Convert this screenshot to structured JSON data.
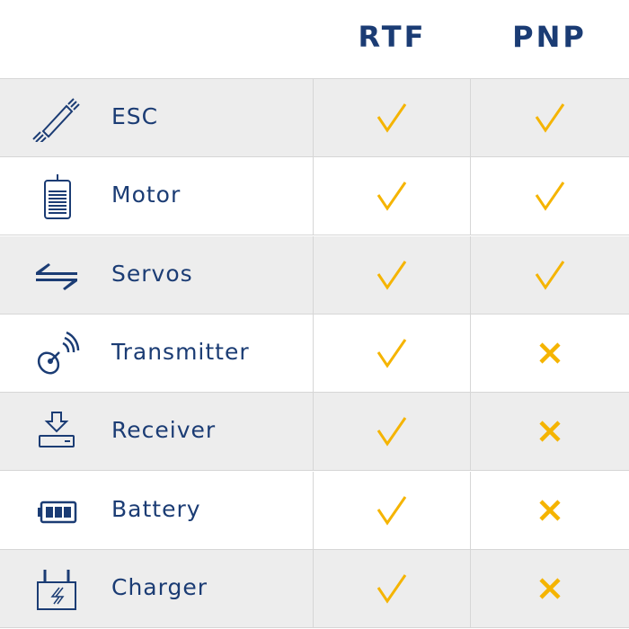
{
  "columns": [
    "RTF",
    "PNP"
  ],
  "colors": {
    "text": "#1b3c74",
    "mark": "#f5b400",
    "alt_row": "#ededed"
  },
  "rows": [
    {
      "label": "ESC",
      "icon": "esc-icon",
      "rtf": "check",
      "pnp": "check"
    },
    {
      "label": "Motor",
      "icon": "motor-icon",
      "rtf": "check",
      "pnp": "check"
    },
    {
      "label": "Servos",
      "icon": "servos-icon",
      "rtf": "check",
      "pnp": "check"
    },
    {
      "label": "Transmitter",
      "icon": "transmitter-icon",
      "rtf": "check",
      "pnp": "cross"
    },
    {
      "label": "Receiver",
      "icon": "receiver-icon",
      "rtf": "check",
      "pnp": "cross"
    },
    {
      "label": "Battery",
      "icon": "battery-icon",
      "rtf": "check",
      "pnp": "cross"
    },
    {
      "label": "Charger",
      "icon": "charger-icon",
      "rtf": "check",
      "pnp": "cross"
    }
  ]
}
